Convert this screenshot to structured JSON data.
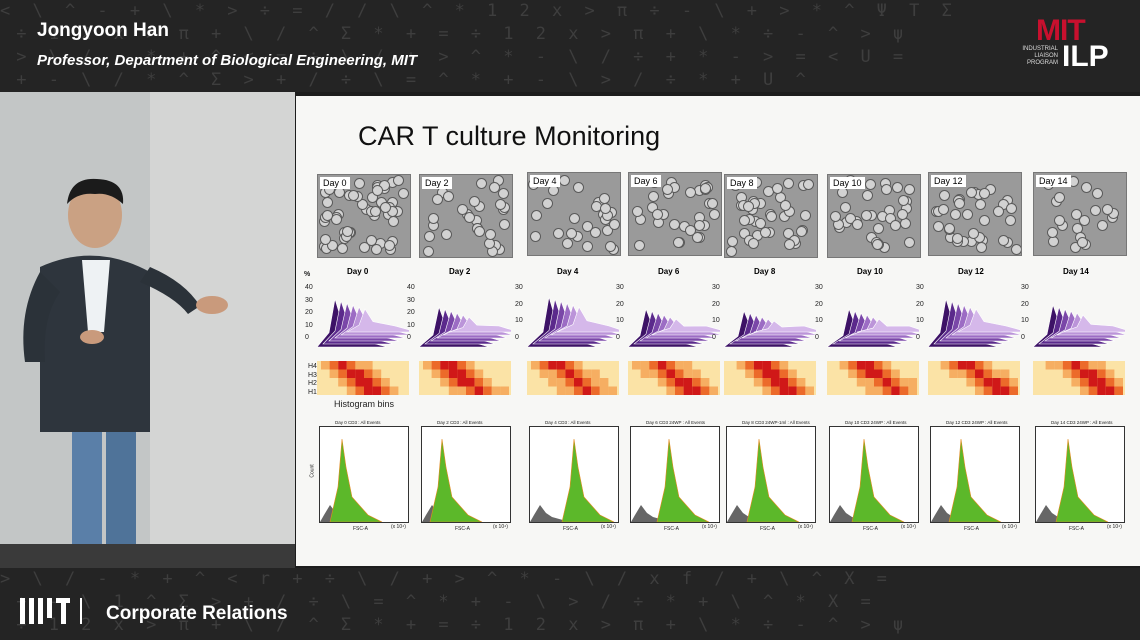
{
  "speaker": {
    "name": "Jongyoon Han",
    "title": "Professor, Department of Biological Engineering, MIT"
  },
  "logo": {
    "mit": "MIT",
    "ilp": "ILP",
    "sub1": "INDUSTRIAL",
    "sub2": "LIAISON",
    "sub3": "PROGRAM"
  },
  "slide": {
    "title": "CAR T culture Monitoring",
    "micro_days": [
      "Day 0",
      "Day 2",
      "Day 4",
      "Day 6",
      "Day 8",
      "Day 10",
      "Day 12",
      "Day 14"
    ],
    "ridge_days": [
      "Day 0",
      "Day 2",
      "Day 4",
      "Day 6",
      "Day 8",
      "Day 10",
      "Day 12",
      "Day 14"
    ],
    "percent_label": "%",
    "y_ticks_40": [
      "40",
      "30",
      "20",
      "10",
      "0"
    ],
    "y_ticks_30": [
      "30",
      "20",
      "10",
      "0"
    ],
    "heat_rows": [
      "H4",
      "H3",
      "H2",
      "H1"
    ],
    "histogram_bins_label": "Histogram bins",
    "flow_titles": [
      "Day 0 CD3 : All Events",
      "Day 2 CD3 : All Events",
      "Day 4 CD3 : All Events",
      "Day 6 CD3 24WP : All Events",
      "Day 8 CD3 24WP-1ml : All Events",
      "Day 10 CD3 24WP : All Events",
      "Day 12 CD3 24WP : All Events",
      "Day 14 CD3 24WP : All Events"
    ],
    "flow_xlabel": "FSC-A",
    "flow_ylabel": "Count",
    "flow_xunit": "(x 10⁴)"
  },
  "footer": {
    "label": "Corporate Relations"
  },
  "colors": {
    "bar_bg": "#242424",
    "mit_red": "#c8102e",
    "ridge_dark": "#4b1a7a",
    "ridge_light": "#c9a6e6",
    "heat_low": "#fbe3a6",
    "heat_high": "#d01818",
    "hist_green": "#5cb82a"
  }
}
